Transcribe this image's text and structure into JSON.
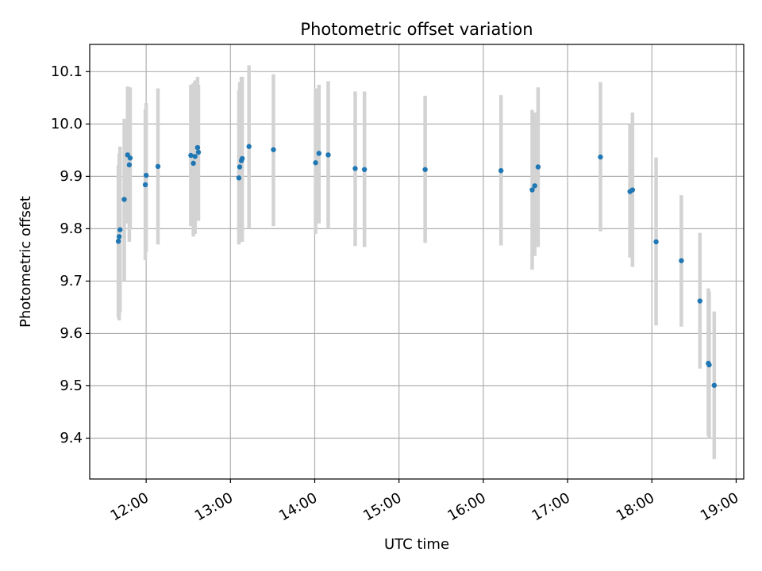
{
  "chart_data": {
    "type": "scatter",
    "title": "Photometric offset variation",
    "xlabel": "UTC time",
    "ylabel": "Photometric offset",
    "x_axis": "time of day (UTC, hours)",
    "xlim": [
      11.33,
      19.09
    ],
    "ylim": [
      9.322,
      10.152
    ],
    "x_ticks": [
      {
        "value": 12,
        "label": "12:00"
      },
      {
        "value": 13,
        "label": "13:00"
      },
      {
        "value": 14,
        "label": "14:00"
      },
      {
        "value": 15,
        "label": "15:00"
      },
      {
        "value": 16,
        "label": "16:00"
      },
      {
        "value": 17,
        "label": "17:00"
      },
      {
        "value": 18,
        "label": "18:00"
      },
      {
        "value": 19,
        "label": "19:00"
      }
    ],
    "y_ticks": [
      {
        "value": 9.4,
        "label": "9.4"
      },
      {
        "value": 9.5,
        "label": "9.5"
      },
      {
        "value": 9.6,
        "label": "9.6"
      },
      {
        "value": 9.7,
        "label": "9.7"
      },
      {
        "value": 9.8,
        "label": "9.8"
      },
      {
        "value": 9.9,
        "label": "9.9"
      },
      {
        "value": 10.0,
        "label": "10.0"
      },
      {
        "value": 10.1,
        "label": "10.1"
      }
    ],
    "grid": true,
    "point_color": "#1f77b4",
    "errorbar_color": "#d3d3d3",
    "points": [
      {
        "x": 11.67,
        "y": 9.776,
        "lo": 9.63,
        "hi": 9.922
      },
      {
        "x": 11.68,
        "y": 9.785,
        "lo": 9.625,
        "hi": 9.944
      },
      {
        "x": 11.69,
        "y": 9.798,
        "lo": 9.64,
        "hi": 9.957
      },
      {
        "x": 11.74,
        "y": 9.856,
        "lo": 9.7,
        "hi": 10.01
      },
      {
        "x": 11.78,
        "y": 9.941,
        "lo": 9.81,
        "hi": 10.072
      },
      {
        "x": 11.8,
        "y": 9.922,
        "lo": 9.775,
        "hi": 10.068
      },
      {
        "x": 11.81,
        "y": 9.935,
        "lo": 9.8,
        "hi": 10.07
      },
      {
        "x": 11.99,
        "y": 9.884,
        "lo": 9.74,
        "hi": 10.028
      },
      {
        "x": 12.0,
        "y": 9.902,
        "lo": 9.755,
        "hi": 10.04
      },
      {
        "x": 12.14,
        "y": 9.919,
        "lo": 9.77,
        "hi": 10.068
      },
      {
        "x": 12.53,
        "y": 9.94,
        "lo": 9.805,
        "hi": 10.075
      },
      {
        "x": 12.56,
        "y": 9.925,
        "lo": 9.785,
        "hi": 10.078
      },
      {
        "x": 12.58,
        "y": 9.938,
        "lo": 9.79,
        "hi": 10.083
      },
      {
        "x": 12.61,
        "y": 9.955,
        "lo": 9.815,
        "hi": 10.09
      },
      {
        "x": 12.62,
        "y": 9.946,
        "lo": 9.815,
        "hi": 10.075
      },
      {
        "x": 13.1,
        "y": 9.897,
        "lo": 9.77,
        "hi": 10.064
      },
      {
        "x": 13.11,
        "y": 9.918,
        "lo": 9.775,
        "hi": 10.08
      },
      {
        "x": 13.13,
        "y": 9.93,
        "lo": 9.775,
        "hi": 10.09
      },
      {
        "x": 13.14,
        "y": 9.934,
        "lo": 9.775,
        "hi": 10.09
      },
      {
        "x": 13.22,
        "y": 9.957,
        "lo": 9.8,
        "hi": 10.112
      },
      {
        "x": 13.51,
        "y": 9.951,
        "lo": 9.805,
        "hi": 10.095
      },
      {
        "x": 14.01,
        "y": 9.926,
        "lo": 9.79,
        "hi": 10.068
      },
      {
        "x": 14.05,
        "y": 9.944,
        "lo": 9.81,
        "hi": 10.075
      },
      {
        "x": 14.16,
        "y": 9.941,
        "lo": 9.8,
        "hi": 10.082
      },
      {
        "x": 14.48,
        "y": 9.915,
        "lo": 9.767,
        "hi": 10.062
      },
      {
        "x": 14.59,
        "y": 9.913,
        "lo": 9.765,
        "hi": 10.062
      },
      {
        "x": 15.31,
        "y": 9.913,
        "lo": 9.773,
        "hi": 10.054
      },
      {
        "x": 16.21,
        "y": 9.911,
        "lo": 9.768,
        "hi": 10.055
      },
      {
        "x": 16.58,
        "y": 9.874,
        "lo": 9.722,
        "hi": 10.027
      },
      {
        "x": 16.61,
        "y": 9.882,
        "lo": 9.748,
        "hi": 10.022
      },
      {
        "x": 16.65,
        "y": 9.918,
        "lo": 9.765,
        "hi": 10.07
      },
      {
        "x": 17.39,
        "y": 9.937,
        "lo": 9.795,
        "hi": 10.08
      },
      {
        "x": 17.74,
        "y": 9.871,
        "lo": 9.745,
        "hi": 10.0
      },
      {
        "x": 17.77,
        "y": 9.874,
        "lo": 9.727,
        "hi": 10.022
      },
      {
        "x": 18.05,
        "y": 9.775,
        "lo": 9.615,
        "hi": 9.936
      },
      {
        "x": 18.35,
        "y": 9.739,
        "lo": 9.613,
        "hi": 9.864
      },
      {
        "x": 18.57,
        "y": 9.662,
        "lo": 9.533,
        "hi": 9.792
      },
      {
        "x": 18.67,
        "y": 9.543,
        "lo": 9.405,
        "hi": 9.686
      },
      {
        "x": 18.68,
        "y": 9.54,
        "lo": 9.4,
        "hi": 9.68
      },
      {
        "x": 18.74,
        "y": 9.501,
        "lo": 9.36,
        "hi": 9.642
      }
    ]
  }
}
